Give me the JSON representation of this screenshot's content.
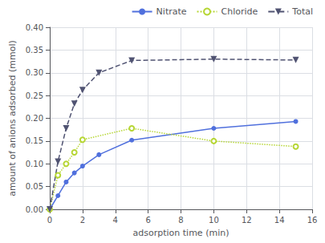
{
  "chart_data": {
    "type": "line",
    "xlabel": "adsorption time (min)",
    "ylabel": "amount of anions adsorbed (mmol)",
    "xlim": [
      0,
      16
    ],
    "ylim": [
      0,
      0.4
    ],
    "xticks": [
      0,
      2,
      4,
      6,
      8,
      10,
      12,
      14,
      16
    ],
    "yticks": [
      {
        "value": 0,
        "label": "0.00"
      },
      0.05,
      {
        "value": 0.1,
        "label": "0.10"
      },
      0.15,
      {
        "value": 0.2,
        "label": "0.20"
      },
      0.25,
      {
        "value": 0.3,
        "label": "0.30"
      },
      0.35,
      {
        "value": 0.4,
        "label": "0.40"
      }
    ],
    "grid": true,
    "legend": "upper right",
    "series": [
      {
        "name": "Nitrate",
        "line_style": "solid",
        "marker": "circle",
        "x": [
          0,
          0.5,
          1,
          1.5,
          2,
          3,
          5,
          10,
          15
        ],
        "values": [
          0.0,
          0.03,
          0.06,
          0.08,
          0.095,
          0.12,
          0.152,
          0.178,
          0.193
        ]
      },
      {
        "name": "Chloride",
        "line_style": "dotted",
        "marker": "open_circle",
        "x": [
          0,
          0.5,
          1,
          1.5,
          2,
          5,
          10,
          15
        ],
        "values": [
          0.0,
          0.075,
          0.1,
          0.125,
          0.153,
          0.178,
          0.15,
          0.138
        ]
      },
      {
        "name": "Total",
        "line_style": "dashed",
        "marker": "triangle_down",
        "x": [
          0,
          0.5,
          1,
          1.5,
          2,
          3,
          5,
          10,
          15
        ],
        "values": [
          0.0,
          0.105,
          0.178,
          0.232,
          0.262,
          0.3,
          0.327,
          0.33,
          0.328
        ]
      }
    ]
  }
}
